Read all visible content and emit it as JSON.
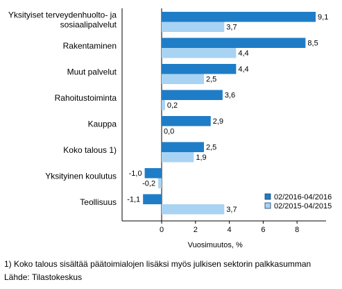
{
  "chart_data": {
    "type": "bar",
    "orientation": "horizontal",
    "categories": [
      [
        "Yksityiset terveydenhuolto- ja",
        "sosiaalipalvelut"
      ],
      [
        "Rakentaminen"
      ],
      [
        "Muut palvelut"
      ],
      [
        "Rahoitustoiminta"
      ],
      [
        "Kauppa"
      ],
      [
        "Koko talous 1)"
      ],
      [
        "Yksityinen koulutus"
      ],
      [
        "Teollisuus"
      ]
    ],
    "series": [
      {
        "name": "02/2016-04/2016",
        "color": "#1f7dc7",
        "values": [
          9.1,
          8.5,
          4.4,
          3.6,
          2.9,
          2.5,
          -1.0,
          -1.1
        ],
        "labels": [
          "9,1",
          "8,5",
          "4,4",
          "3,6",
          "2,9",
          "2,5",
          "-1,0",
          "-1,1"
        ]
      },
      {
        "name": "02/2015-04/2015",
        "color": "#a9d3f3",
        "values": [
          3.7,
          4.4,
          2.5,
          0.2,
          0.0,
          1.9,
          -0.2,
          3.7
        ],
        "labels": [
          "3,7",
          "4,4",
          "2,5",
          "0,2",
          "0,0",
          "1,9",
          "-0,2",
          "3,7"
        ]
      }
    ],
    "xlabel": "Vuosimuutos, %",
    "xlim": [
      -2.4,
      10.7
    ],
    "xticks": [
      0,
      2,
      4,
      6,
      8
    ],
    "xtick_labels": [
      "0",
      "2",
      "4",
      "6",
      "8"
    ],
    "grid": false,
    "legend_position": "bottom-right"
  },
  "footnote": "1) Koko talous sisältää päätoimialojen lisäksi myös julkisen sektorin palkkasumman",
  "source": "Lähde: Tilastokeskus"
}
